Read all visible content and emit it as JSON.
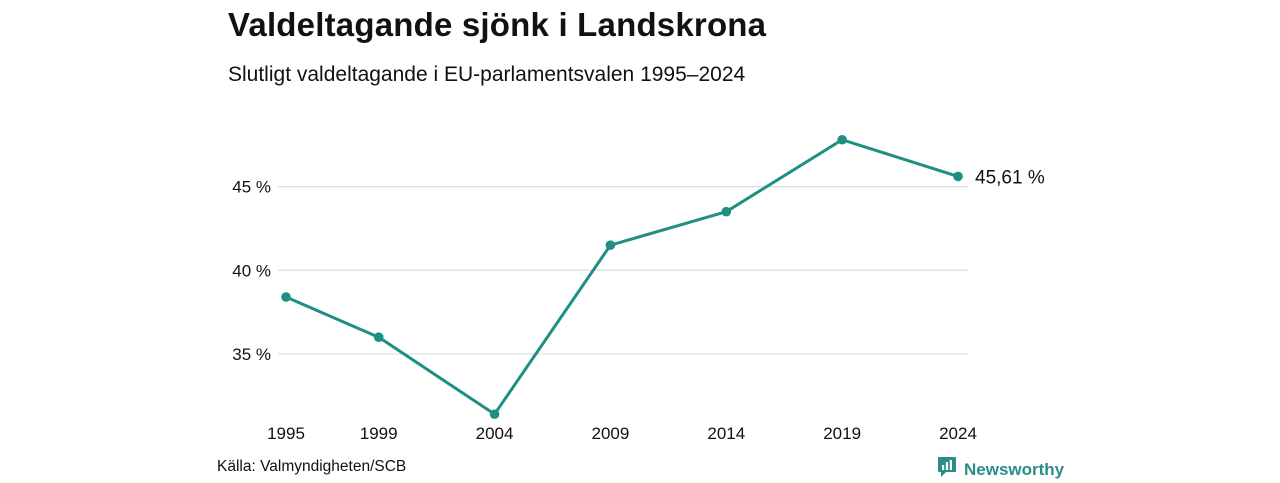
{
  "title": "Valdeltagande sjönk i Landskrona",
  "subtitle": "Slutligt valdeltagande i EU-parlamentsvalen 1995–2024",
  "source": "Källa: Valmyndigheten/SCB",
  "brand": {
    "name": "Newsworthy",
    "icon": "newsworthy-logo-icon"
  },
  "colors": {
    "line": "#1f8f82",
    "grid": "#dddddd",
    "brand": "#2a8d87"
  },
  "chart_data": {
    "type": "line",
    "x": [
      "1995",
      "1999",
      "2004",
      "2009",
      "2014",
      "2019",
      "2024"
    ],
    "series": [
      {
        "values": [
          38.4,
          36.0,
          31.4,
          41.5,
          43.5,
          47.8,
          45.61
        ]
      }
    ],
    "yticks": [
      {
        "value": 35,
        "label": "35 %"
      },
      {
        "value": 40,
        "label": "40 %"
      },
      {
        "value": 45,
        "label": "45 %"
      }
    ],
    "ylim": [
      30,
      48
    ],
    "grid": true,
    "end_label": "45,61 %"
  }
}
